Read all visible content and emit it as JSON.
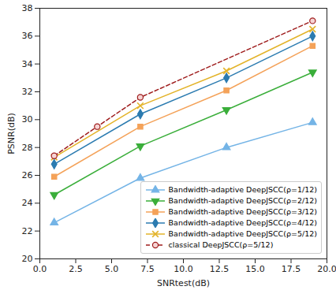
{
  "chart_data": {
    "type": "line",
    "xlabel": "SNRtest(dB)",
    "ylabel": "PSNR(dB)",
    "xlim": [
      0,
      20
    ],
    "xticks": [
      {
        "value": 0,
        "label": "0.0"
      },
      {
        "value": 2.5,
        "label": "2.5"
      },
      {
        "value": 5,
        "label": "5.0"
      },
      {
        "value": 7.5,
        "label": "7.5"
      },
      {
        "value": 10,
        "label": "10.0"
      },
      {
        "value": 12.5,
        "label": "12.5"
      },
      {
        "value": 15,
        "label": "15.0"
      },
      {
        "value": 17.5,
        "label": "17.5"
      },
      {
        "value": 20,
        "label": "20.0"
      }
    ],
    "ylim": [
      20,
      38
    ],
    "yticks": [
      20,
      22,
      24,
      26,
      28,
      30,
      32,
      34,
      36,
      38
    ],
    "grid": false,
    "legend": "lower right",
    "series": [
      {
        "name": "Bandwidth-adaptive DeepJSCC(ρ=1/12)",
        "color": "#74b4e6",
        "marker": "triangle-up",
        "line_style": "solid",
        "x": [
          1,
          7,
          13,
          19
        ],
        "values": [
          22.6,
          25.8,
          28.0,
          29.8
        ]
      },
      {
        "name": "Bandwidth-adaptive DeepJSCC(ρ=2/12)",
        "color": "#3aae3a",
        "marker": "triangle-down",
        "line_style": "solid",
        "x": [
          1,
          7,
          13,
          19
        ],
        "values": [
          24.6,
          28.1,
          30.7,
          33.4
        ]
      },
      {
        "name": "Bandwidth-adaptive DeepJSCC(ρ=3/12)",
        "color": "#f4a259",
        "marker": "square",
        "line_style": "solid",
        "x": [
          1,
          7,
          13,
          19
        ],
        "values": [
          25.9,
          29.5,
          32.1,
          35.3
        ]
      },
      {
        "name": "Bandwidth-adaptive DeepJSCC(ρ=4/12)",
        "color": "#2b7bb0",
        "marker": "diamond",
        "line_style": "solid",
        "x": [
          1,
          7,
          13,
          19
        ],
        "values": [
          26.8,
          30.4,
          33.0,
          36.0
        ]
      },
      {
        "name": "Bandwidth-adaptive DeepJSCC(ρ=5/12)",
        "color": "#e3b329",
        "marker": "x",
        "line_style": "solid",
        "x": [
          1,
          7,
          13,
          19
        ],
        "values": [
          27.3,
          31.0,
          33.5,
          36.5
        ]
      },
      {
        "name": "classical DeepJSCC(ρ=5/12)",
        "color": "#9e1b1b",
        "marker": "circle",
        "line_style": "dashed",
        "x": [
          1,
          4,
          7,
          19
        ],
        "values": [
          27.4,
          29.5,
          31.6,
          37.1
        ]
      }
    ]
  }
}
